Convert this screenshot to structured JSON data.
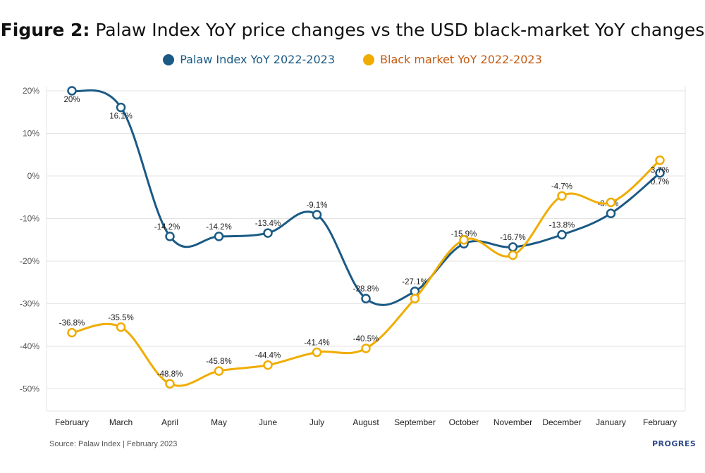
{
  "title": {
    "prefix": "Figure 2:",
    "text": "Palaw Index YoY price changes vs the USD black-market YoY changes"
  },
  "source": "Source: Palaw Index | February 2023",
  "logo_text": "PROGRES",
  "chart_data": {
    "type": "line",
    "categories": [
      "February",
      "March",
      "April",
      "May",
      "June",
      "July",
      "August",
      "September",
      "October",
      "November",
      "December",
      "January",
      "February"
    ],
    "ylim": [
      -55,
      20
    ],
    "yticks": [
      20,
      10,
      0,
      -10,
      -20,
      -30,
      -40,
      -50
    ],
    "ytick_labels": [
      "20%",
      "10%",
      "0%",
      "-10%",
      "-20%",
      "-30%",
      "-40%",
      "-50%"
    ],
    "grid": true,
    "legend_position": "top-center",
    "series": [
      {
        "name": "Palaw Index YoY 2022-2023",
        "color": "#1b5a85",
        "values": [
          20,
          16.1,
          -14.2,
          -14.2,
          -13.4,
          -9.1,
          -28.8,
          -27.1,
          -15.9,
          -16.7,
          -13.8,
          -8.8,
          0.7
        ],
        "labels": [
          "20%",
          "16.1%",
          "-14.2%",
          "-14.2%",
          "-13.4%",
          "-9.1%",
          "-28.8%",
          "-27.1%",
          "-15.9%",
          "-16.7%",
          "-13.8%",
          "-8.8%",
          "0.7%"
        ]
      },
      {
        "name": "Black market YoY 2022-2023",
        "color": "#f0ac00",
        "values": [
          -36.8,
          -35.5,
          -48.8,
          -45.8,
          -44.4,
          -41.4,
          -40.5,
          -28.8,
          -15,
          -18.6,
          -4.7,
          -6.2,
          3.7
        ],
        "labels": [
          "-36.8%",
          "-35.5%",
          "-48.8%",
          "-45.8%",
          "-44.4%",
          "-41.4%",
          "-40.5%",
          "",
          "",
          "",
          "-4.7%",
          "",
          "3.7%"
        ]
      }
    ]
  }
}
